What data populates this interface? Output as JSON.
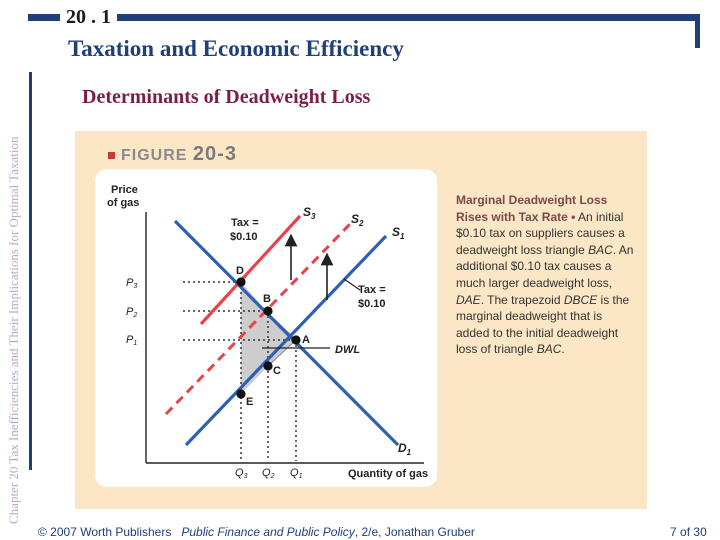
{
  "slide": {
    "section_number": "20 . 1",
    "title": "Taxation and Economic Efficiency",
    "subtitle": "Determinants of Deadweight Loss",
    "side_text": "Chapter 20  Tax Inefficiencies and Their Implications for Optimal Taxation"
  },
  "figure": {
    "label_word": "FIGURE",
    "label_number": "20-3",
    "caption_title": "Marginal Deadweight Loss Rises with Tax Rate",
    "caption_bullet": "•",
    "caption_text_1": "An initial $0.10 tax on suppliers causes a deadweight loss triangle",
    "caption_text_1_em": "BAC",
    "caption_text_2": ". An additional $0.10 tax causes a much larger deadweight loss,",
    "caption_text_2_em": "DAE",
    "caption_text_3": ". The trapezoid",
    "caption_text_3_em": "DBCE",
    "caption_text_4": "is the marginal deadweight that is added to the initial deadweight loss of triangle",
    "caption_text_4_em": "BAC",
    "caption_text_5": "."
  },
  "diagram": {
    "y_axis_label_line1": "Price",
    "y_axis_label_line2": "of gas",
    "x_axis_label": "Quantity of gas",
    "curve_labels": {
      "s3": "S",
      "s3_sub": "3",
      "s2": "S",
      "s2_sub": "2",
      "s1": "S",
      "s1_sub": "1",
      "d1": "D",
      "d1_sub": "1"
    },
    "price_labels": {
      "p3": "P",
      "p3_sub": "3",
      "p2": "P",
      "p2_sub": "2",
      "p1": "P",
      "p1_sub": "1"
    },
    "quantity_labels": {
      "q3": "Q",
      "q3_sub": "3",
      "q2": "Q",
      "q2_sub": "2",
      "q1": "Q",
      "q1_sub": "1"
    },
    "points": {
      "a": "A",
      "b": "B",
      "c": "C",
      "d": "D",
      "e": "E"
    },
    "tax_upper_line1": "Tax =",
    "tax_upper_line2": "$0.10",
    "tax_lower_line1": "Tax =",
    "tax_lower_line2": "$0.10",
    "dwl_label": "DWL",
    "colors": {
      "supply_taxed": "#e8434a",
      "blue_curves": "#2f5fb5",
      "shading": "#bcbcbc"
    }
  },
  "footer": {
    "copyright": "© 2007 Worth Publishers",
    "book_title": "Public Finance and Public Policy",
    "edition": ", 2/e, Jonathan Gruber",
    "page_num": "7",
    "page_sep": "of",
    "page_total": "30"
  }
}
